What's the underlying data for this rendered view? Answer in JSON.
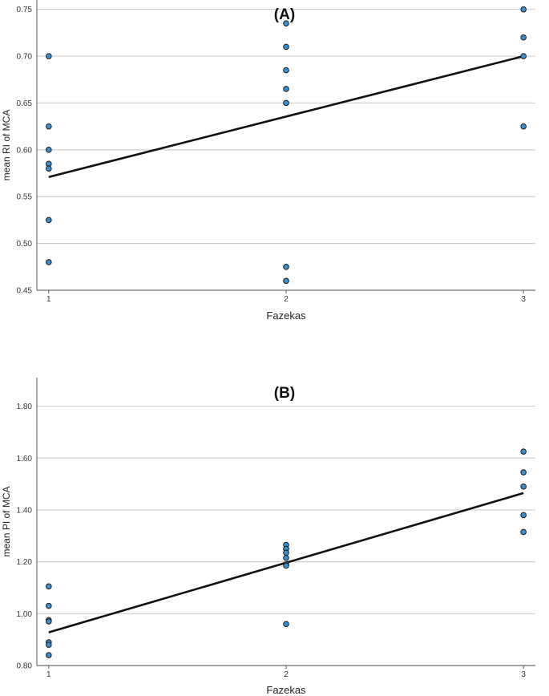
{
  "colors": {
    "point_fill": "#3a8fd0",
    "point_stroke": "#1a1a1a",
    "fit_line": "#111111",
    "grid": "#cfcfcf",
    "axis": "#555555"
  },
  "chart_data": [
    {
      "type": "scatter",
      "title": "(A)",
      "xlabel": "Fazekas",
      "ylabel": "mean RI of MCA",
      "xticks": [
        "1",
        "2",
        "3"
      ],
      "yticks": [
        "0.45",
        "0.50",
        "0.55",
        "0.60",
        "0.65",
        "0.70",
        "0.75"
      ],
      "xlim": [
        0.95,
        3.05
      ],
      "ylim": [
        0.45,
        0.76
      ],
      "grid": "horizontal",
      "points": [
        {
          "x": 1,
          "y": 0.7
        },
        {
          "x": 1,
          "y": 0.625
        },
        {
          "x": 1,
          "y": 0.6
        },
        {
          "x": 1,
          "y": 0.585
        },
        {
          "x": 1,
          "y": 0.58
        },
        {
          "x": 1,
          "y": 0.525
        },
        {
          "x": 1,
          "y": 0.48
        },
        {
          "x": 2,
          "y": 0.735
        },
        {
          "x": 2,
          "y": 0.71
        },
        {
          "x": 2,
          "y": 0.685
        },
        {
          "x": 2,
          "y": 0.665
        },
        {
          "x": 2,
          "y": 0.65
        },
        {
          "x": 2,
          "y": 0.475
        },
        {
          "x": 2,
          "y": 0.46
        },
        {
          "x": 3,
          "y": 0.75
        },
        {
          "x": 3,
          "y": 0.72
        },
        {
          "x": 3,
          "y": 0.7
        },
        {
          "x": 3,
          "y": 0.625
        }
      ],
      "fit_line": {
        "x": [
          1,
          3
        ],
        "y": [
          0.571,
          0.7
        ]
      }
    },
    {
      "type": "scatter",
      "title": "(B)",
      "xlabel": "Fazekas",
      "ylabel": "mean PI of MCA",
      "xticks": [
        "1",
        "2",
        "3"
      ],
      "yticks": [
        "0.80",
        "1.00",
        "1.20",
        "1.40",
        "1.60",
        "1.80"
      ],
      "xlim": [
        0.95,
        3.05
      ],
      "ylim": [
        0.8,
        1.91
      ],
      "grid": "horizontal",
      "points": [
        {
          "x": 1,
          "y": 1.105
        },
        {
          "x": 1,
          "y": 1.03
        },
        {
          "x": 1,
          "y": 0.975
        },
        {
          "x": 1,
          "y": 0.97
        },
        {
          "x": 1,
          "y": 0.89
        },
        {
          "x": 1,
          "y": 0.88
        },
        {
          "x": 1,
          "y": 0.84
        },
        {
          "x": 2,
          "y": 1.265
        },
        {
          "x": 2,
          "y": 1.25
        },
        {
          "x": 2,
          "y": 1.235
        },
        {
          "x": 2,
          "y": 1.215
        },
        {
          "x": 2,
          "y": 1.19
        },
        {
          "x": 2,
          "y": 1.185
        },
        {
          "x": 2,
          "y": 0.96
        },
        {
          "x": 3,
          "y": 1.625
        },
        {
          "x": 3,
          "y": 1.545
        },
        {
          "x": 3,
          "y": 1.49
        },
        {
          "x": 3,
          "y": 1.38
        },
        {
          "x": 3,
          "y": 1.315
        }
      ],
      "fit_line": {
        "x": [
          1,
          3
        ],
        "y": [
          0.928,
          1.465
        ]
      }
    }
  ]
}
